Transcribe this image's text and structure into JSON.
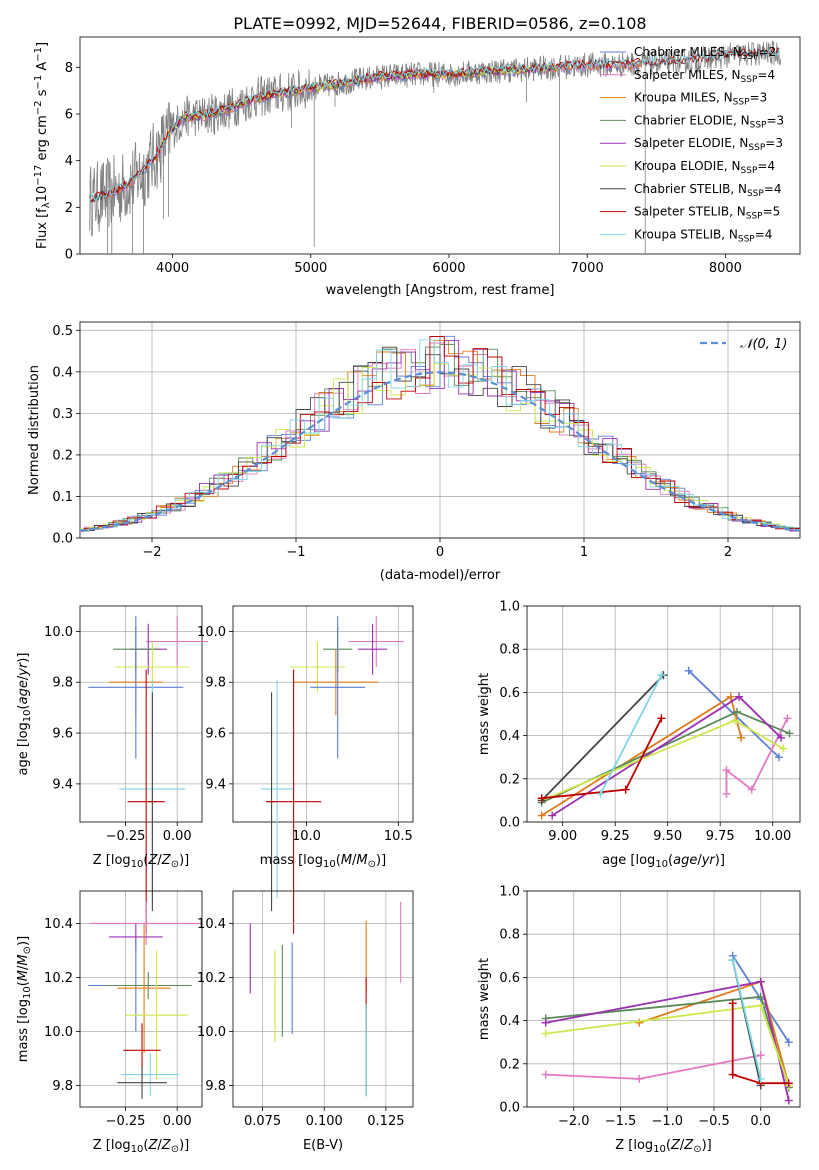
{
  "figure": {
    "title": "PLATE=0992, MJD=52644, FIBERID=0586, z=0.108"
  },
  "colors": {
    "Chabrier MILES": "#5b7fd6",
    "Salpeter MILES": "#e377c2",
    "Kroupa MILES": "#e07b1a",
    "Chabrier ELODIE": "#5a8a5a",
    "Salpeter ELODIE": "#9b30b0",
    "Kroupa ELODIE": "#cde84a",
    "Chabrier STELIB": "#444444",
    "Salpeter STELIB": "#c00000",
    "Kroupa STELIB": "#7fd6e6",
    "data": "#808080",
    "gaussian": "#5b8fd6"
  },
  "chart_data": [
    {
      "id": "spectrum",
      "type": "line",
      "xlabel": "wavelength [Angstrom, rest frame]",
      "ylabel": "Flux [f_λ 10^-17 erg cm^-2 s^-1 A^-1]",
      "xlim": [
        3330,
        8540
      ],
      "ylim": [
        0,
        9.3
      ],
      "xticks": [
        4000,
        5000,
        6000,
        7000,
        8000
      ],
      "yticks": [
        0,
        2,
        4,
        6,
        8
      ],
      "legend_position": "top-right",
      "legend": [
        {
          "label": "Chabrier MILES, N_SSP=2",
          "base": "Chabrier MILES, N",
          "sub": "SSP",
          "tail": "=2"
        },
        {
          "label": "Salpeter MILES, N_SSP=4",
          "base": "Salpeter MILES, N",
          "sub": "SSP",
          "tail": "=4"
        },
        {
          "label": "Kroupa MILES, N_SSP=3",
          "base": "Kroupa MILES, N",
          "sub": "SSP",
          "tail": "=3"
        },
        {
          "label": "Chabrier ELODIE, N_SSP=3",
          "base": "Chabrier ELODIE, N",
          "sub": "SSP",
          "tail": "=3"
        },
        {
          "label": "Salpeter ELODIE, N_SSP=3",
          "base": "Salpeter ELODIE, N",
          "sub": "SSP",
          "tail": "=3"
        },
        {
          "label": "Kroupa ELODIE, N_SSP=4",
          "base": "Kroupa ELODIE, N",
          "sub": "SSP",
          "tail": "=4"
        },
        {
          "label": "Chabrier STELIB, N_SSP=4",
          "base": "Chabrier STELIB, N",
          "sub": "SSP",
          "tail": "=4"
        },
        {
          "label": "Salpeter STELIB, N_SSP=5",
          "base": "Salpeter STELIB, N",
          "sub": "SSP",
          "tail": "=5"
        },
        {
          "label": "Kroupa STELIB, N_SSP=4",
          "base": "Kroupa STELIB, N",
          "sub": "SSP",
          "tail": "=4"
        }
      ],
      "continuum": [
        [
          3400,
          2.3
        ],
        [
          3500,
          2.5
        ],
        [
          3600,
          2.7
        ],
        [
          3700,
          3.1
        ],
        [
          3800,
          3.6
        ],
        [
          3900,
          4.4
        ],
        [
          4000,
          5.4
        ],
        [
          4100,
          5.9
        ],
        [
          4200,
          5.9
        ],
        [
          4400,
          6.2
        ],
        [
          4600,
          6.7
        ],
        [
          4800,
          6.9
        ],
        [
          5000,
          7.1
        ],
        [
          5200,
          7.3
        ],
        [
          5500,
          7.6
        ],
        [
          5800,
          7.7
        ],
        [
          6000,
          7.7
        ],
        [
          6200,
          7.8
        ],
        [
          6500,
          7.9
        ],
        [
          6800,
          8.0
        ],
        [
          7000,
          8.1
        ],
        [
          7200,
          8.1
        ],
        [
          7500,
          8.2
        ],
        [
          7800,
          8.3
        ],
        [
          8000,
          8.5
        ],
        [
          8300,
          8.6
        ],
        [
          8400,
          8.6
        ]
      ],
      "features": [
        [
          3530,
          0.0
        ],
        [
          3560,
          0.0
        ],
        [
          3710,
          0.0
        ],
        [
          3790,
          0.0
        ],
        [
          3935,
          1.5
        ],
        [
          3970,
          1.6
        ],
        [
          4305,
          5.1
        ],
        [
          4860,
          5.4
        ],
        [
          5025,
          0.3
        ],
        [
          5175,
          6.3
        ],
        [
          5890,
          6.9
        ],
        [
          6560,
          6.5
        ],
        [
          6800,
          0.0
        ],
        [
          7420,
          0.0
        ]
      ]
    },
    {
      "id": "residuals",
      "type": "histogram",
      "xlabel": "(data-model)/error",
      "ylabel": "Normed distribution",
      "xlim": [
        -2.5,
        2.5
      ],
      "ylim": [
        0,
        0.52
      ],
      "xticks": [
        -2,
        -1,
        0,
        1,
        2
      ],
      "yticks": [
        0.0,
        0.1,
        0.2,
        0.3,
        0.4,
        0.5
      ],
      "grid": true,
      "legend_label": "𝒩(0, 1)",
      "legend_position": "top-right",
      "bin_width": 0.1
    },
    {
      "id": "age-vs-Z",
      "type": "scatter",
      "xlabel": "Z [log10(Z/Z⊙)]",
      "ylabel": "age [log10(age/yr)]",
      "xlim": [
        -0.47,
        0.12
      ],
      "ylim": [
        9.25,
        10.1
      ],
      "xticks": [
        -0.25,
        0.0
      ],
      "yticks": [
        9.4,
        9.6,
        9.8,
        10.0
      ],
      "grid": true,
      "points": [
        {
          "series": "Salpeter MILES",
          "x": 0.0,
          "xerr": 0.15,
          "y": 9.96,
          "yerr": 0.1
        },
        {
          "series": "Salpeter ELODIE",
          "x": -0.14,
          "xerr": 0.09,
          "y": 9.93,
          "yerr": 0.1
        },
        {
          "series": "Chabrier ELODIE",
          "x": -0.2,
          "xerr": 0.11,
          "y": 9.93,
          "yerr": 0.09
        },
        {
          "series": "Kroupa ELODIE",
          "x": -0.12,
          "xerr": 0.18,
          "y": 9.86,
          "yerr": 0.1
        },
        {
          "series": "Kroupa MILES",
          "x": -0.2,
          "xerr": 0.13,
          "y": 9.8,
          "yerr": 0.13
        },
        {
          "series": "Chabrier MILES",
          "x": -0.2,
          "xerr": 0.23,
          "y": 9.78,
          "yerr": 0.28
        },
        {
          "series": "Kroupa STELIB",
          "x": -0.12,
          "xerr": 0.16,
          "y": 9.38,
          "yerr": 0.43
        },
        {
          "series": "Chabrier STELIB",
          "x": -0.12,
          "xerr": 0.02,
          "y": 9.33,
          "yerr": 0.43
        },
        {
          "series": "Salpeter STELIB",
          "x": -0.15,
          "xerr": 0.09,
          "y": 9.33,
          "yerr": 0.52
        }
      ]
    },
    {
      "id": "age-vs-mass",
      "type": "scatter",
      "xlabel": "mass [log10(M/M⊙)]",
      "ylabel": "",
      "xlim": [
        9.6,
        10.58
      ],
      "ylim": [
        9.25,
        10.1
      ],
      "xticks": [
        10.0,
        10.5
      ],
      "yticks": [
        9.4,
        9.6,
        9.8,
        10.0
      ],
      "grid": true,
      "points": [
        {
          "series": "Salpeter MILES",
          "x": 10.38,
          "xerr": 0.15,
          "y": 9.96,
          "yerr": 0.1
        },
        {
          "series": "Salpeter ELODIE",
          "x": 10.36,
          "xerr": 0.08,
          "y": 9.93,
          "yerr": 0.1
        },
        {
          "series": "Chabrier ELODIE",
          "x": 10.17,
          "xerr": 0.08,
          "y": 9.93,
          "yerr": 0.09
        },
        {
          "series": "Kroupa ELODIE",
          "x": 10.06,
          "xerr": 0.15,
          "y": 9.86,
          "yerr": 0.1
        },
        {
          "series": "Kroupa MILES",
          "x": 10.16,
          "xerr": 0.23,
          "y": 9.8,
          "yerr": 0.13
        },
        {
          "series": "Chabrier MILES",
          "x": 10.17,
          "xerr": 0.15,
          "y": 9.78,
          "yerr": 0.28
        },
        {
          "series": "Kroupa STELIB",
          "x": 9.84,
          "xerr": 0.09,
          "y": 9.38,
          "yerr": 0.43
        },
        {
          "series": "Chabrier STELIB",
          "x": 9.81,
          "xerr": 0.02,
          "y": 9.33,
          "yerr": 0.43
        },
        {
          "series": "Salpeter STELIB",
          "x": 9.93,
          "xerr": 0.15,
          "y": 9.33,
          "yerr": 0.52
        }
      ]
    },
    {
      "id": "mass-vs-Z",
      "type": "scatter",
      "xlabel": "Z [log10(Z/Z⊙)]",
      "ylabel": "mass [log10(M/M⊙)]",
      "xlim": [
        -0.47,
        0.12
      ],
      "ylim": [
        9.72,
        10.52
      ],
      "xticks": [
        -0.25,
        0.0
      ],
      "yticks": [
        9.8,
        10.0,
        10.2,
        10.4
      ],
      "grid": true,
      "points": [
        {
          "series": "Salpeter MILES",
          "x": -0.15,
          "xerr": 0.27,
          "y": 10.4,
          "yerr": 0.08
        },
        {
          "series": "Salpeter ELODIE",
          "x": -0.2,
          "xerr": 0.13,
          "y": 10.35,
          "yerr": 0.05
        },
        {
          "series": "Chabrier MILES",
          "x": -0.2,
          "xerr": 0.23,
          "y": 10.17,
          "yerr": 0.17
        },
        {
          "series": "Chabrier ELODIE",
          "x": -0.14,
          "xerr": 0.21,
          "y": 10.17,
          "yerr": 0.05
        },
        {
          "series": "Kroupa MILES",
          "x": -0.16,
          "xerr": 0.13,
          "y": 10.16,
          "yerr": 0.24
        },
        {
          "series": "Kroupa ELODIE",
          "x": -0.1,
          "xerr": 0.15,
          "y": 10.06,
          "yerr": 0.24
        },
        {
          "series": "Salpeter STELIB",
          "x": -0.17,
          "xerr": 0.09,
          "y": 9.93,
          "yerr": 0.1
        },
        {
          "series": "Kroupa STELIB",
          "x": -0.13,
          "xerr": 0.14,
          "y": 9.84,
          "yerr": 0.08
        },
        {
          "series": "Chabrier STELIB",
          "x": -0.17,
          "xerr": 0.12,
          "y": 9.81,
          "yerr": 0.06
        }
      ]
    },
    {
      "id": "mass-vs-EBV",
      "type": "scatter",
      "xlabel": "E(B-V)",
      "ylabel": "",
      "xlim": [
        0.063,
        0.136
      ],
      "ylim": [
        9.72,
        10.52
      ],
      "xticks": [
        0.075,
        0.1,
        0.125
      ],
      "yticks": [
        9.8,
        10.0,
        10.2,
        10.4
      ],
      "grid": true,
      "points": [
        {
          "series": "Salpeter ELODIE",
          "x": 0.07,
          "y": 10.27,
          "yerr": 0.13
        },
        {
          "series": "Kroupa ELODIE",
          "x": 0.08,
          "y": 10.13,
          "yerr": 0.17
        },
        {
          "series": "Chabrier ELODIE",
          "x": 0.083,
          "y": 10.15,
          "yerr": 0.17
        },
        {
          "series": "Chabrier MILES",
          "x": 0.087,
          "y": 10.16,
          "yerr": 0.17
        },
        {
          "series": "Kroupa MILES",
          "x": 0.117,
          "y": 10.28,
          "yerr": 0.13
        },
        {
          "series": "Salpeter STELIB",
          "x": 0.117,
          "y": 10.1,
          "yerr": 0.1
        },
        {
          "series": "Chabrier STELIB",
          "x": 0.117,
          "y": 9.93,
          "yerr": 0.17
        },
        {
          "series": "Kroupa STELIB",
          "x": 0.117,
          "y": 9.93,
          "yerr": 0.17
        },
        {
          "series": "Salpeter MILES",
          "x": 0.131,
          "y": 10.33,
          "yerr": 0.15
        }
      ]
    },
    {
      "id": "weight-vs-age",
      "type": "line",
      "xlabel": "age [log10(age/yr)]",
      "ylabel": "mass weight",
      "xlim": [
        8.83,
        10.13
      ],
      "ylim": [
        0,
        1.0
      ],
      "xticks": [
        9.0,
        9.25,
        9.5,
        9.75,
        10.0
      ],
      "yticks": [
        0.0,
        0.2,
        0.4,
        0.6,
        0.8,
        1.0
      ],
      "grid": true,
      "series": [
        {
          "name": "Chabrier MILES",
          "x": [
            9.6,
            10.03
          ],
          "y": [
            0.7,
            0.3
          ]
        },
        {
          "name": "Salpeter MILES",
          "x": [
            9.78,
            9.78,
            9.9,
            10.07
          ],
          "y": [
            0.13,
            0.24,
            0.15,
            0.48
          ]
        },
        {
          "name": "Kroupa MILES",
          "x": [
            8.9,
            9.8,
            9.85
          ],
          "y": [
            0.03,
            0.58,
            0.39
          ]
        },
        {
          "name": "Chabrier ELODIE",
          "x": [
            8.9,
            9.83,
            10.08
          ],
          "y": [
            0.09,
            0.51,
            0.41
          ]
        },
        {
          "name": "Salpeter ELODIE",
          "x": [
            8.95,
            9.84,
            10.04
          ],
          "y": [
            0.03,
            0.58,
            0.39
          ]
        },
        {
          "name": "Kroupa ELODIE",
          "x": [
            8.9,
            9.82,
            10.05
          ],
          "y": [
            0.1,
            0.47,
            0.34
          ]
        },
        {
          "name": "Chabrier STELIB",
          "x": [
            8.9,
            9.48
          ],
          "y": [
            0.1,
            0.68
          ]
        },
        {
          "name": "Salpeter STELIB",
          "x": [
            8.9,
            9.3,
            9.47
          ],
          "y": [
            0.11,
            0.15,
            0.48
          ]
        },
        {
          "name": "Kroupa STELIB",
          "x": [
            9.18,
            9.47
          ],
          "y": [
            0.13,
            0.68
          ]
        }
      ]
    },
    {
      "id": "weight-vs-Z",
      "type": "line",
      "xlabel": "Z [log10(Z/Z⊙)]",
      "ylabel": "mass weight",
      "xlim": [
        -2.5,
        0.42
      ],
      "ylim": [
        0,
        1.0
      ],
      "xticks": [
        -2.0,
        -1.5,
        -1.0,
        -0.5,
        0.0
      ],
      "yticks": [
        0.0,
        0.2,
        0.4,
        0.6,
        0.8,
        1.0
      ],
      "grid": true,
      "series": [
        {
          "name": "Chabrier MILES",
          "x": [
            -0.3,
            0.0,
            0.3
          ],
          "y": [
            0.7,
            0.5,
            0.3
          ]
        },
        {
          "name": "Salpeter MILES",
          "x": [
            -2.3,
            -1.3,
            0.0
          ],
          "y": [
            0.15,
            0.13,
            0.24
          ]
        },
        {
          "name": "Kroupa MILES",
          "x": [
            -1.3,
            0.0,
            0.3
          ],
          "y": [
            0.39,
            0.58,
            0.1
          ]
        },
        {
          "name": "Chabrier ELODIE",
          "x": [
            -2.3,
            0.0,
            0.3
          ],
          "y": [
            0.41,
            0.51,
            0.09
          ]
        },
        {
          "name": "Salpeter ELODIE",
          "x": [
            -2.3,
            0.0,
            0.3
          ],
          "y": [
            0.39,
            0.58,
            0.03
          ]
        },
        {
          "name": "Kroupa ELODIE",
          "x": [
            -2.3,
            0.0,
            0.3
          ],
          "y": [
            0.34,
            0.47,
            0.1
          ]
        },
        {
          "name": "Chabrier STELIB",
          "x": [
            -0.3,
            0.0
          ],
          "y": [
            0.68,
            0.1
          ]
        },
        {
          "name": "Salpeter STELIB",
          "x": [
            -0.3,
            -0.3,
            0.0,
            0.3
          ],
          "y": [
            0.48,
            0.15,
            0.11,
            0.11
          ]
        },
        {
          "name": "Kroupa STELIB",
          "x": [
            -0.3,
            0.0
          ],
          "y": [
            0.68,
            0.13
          ]
        }
      ]
    }
  ]
}
